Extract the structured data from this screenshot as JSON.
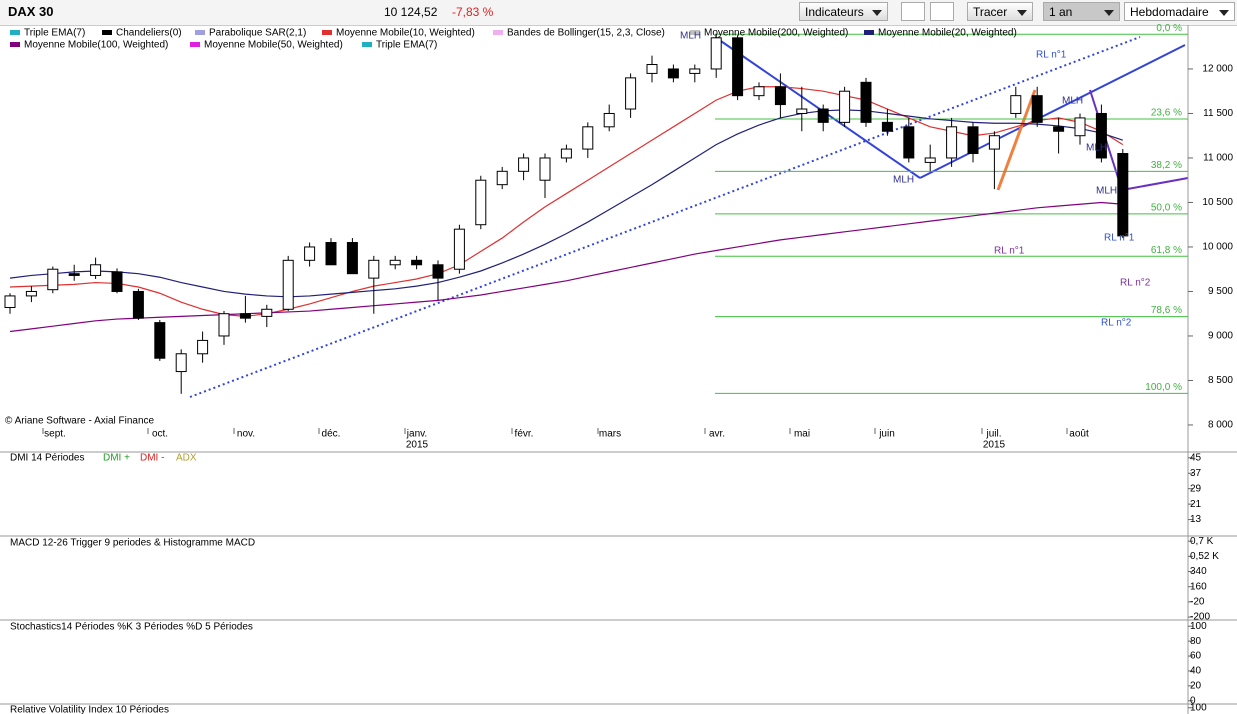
{
  "toolbar": {
    "symbol": "DAX 30",
    "price": "10 124,52",
    "change": "-7,83 %",
    "indicators_button": "Indicateurs",
    "draw_button": "Tracer",
    "period": "1 an",
    "interval": "Hebdomadaire"
  },
  "chart_data": {
    "type": "candlestick",
    "legend": [
      {
        "name": "Triple EMA(7)",
        "color": "#20b0c0"
      },
      {
        "name": "Chandeliers(0)",
        "color": "#000000"
      },
      {
        "name": "Parabolique SAR(2,1)",
        "color": "#a0a0e0"
      },
      {
        "name": "Moyenne Mobile(10, Weighted)",
        "color": "#e03030"
      },
      {
        "name": "Bandes de Bollinger(15, 2,3, Close)",
        "color": "#f0b0f0"
      },
      {
        "name": "Moyenne Mobile(200, Weighted)",
        "color": "#c0c0c0"
      },
      {
        "name": "Moyenne Mobile(20, Weighted)",
        "color": "#20207a"
      },
      {
        "name": "Moyenne Mobile(100, Weighted)",
        "color": "#800080"
      },
      {
        "name": "Moyenne Mobile(50, Weighted)",
        "color": "#e020e0"
      },
      {
        "name": "Triple EMA(7)",
        "color": "#20b0c0"
      }
    ],
    "open": [
      9320,
      9450,
      9520,
      9700,
      9680,
      9720,
      9500,
      9150,
      8600,
      8800,
      9000,
      9250,
      9220,
      9300,
      9850,
      10050,
      10050,
      9650,
      9800,
      9850,
      9800,
      9750,
      10250,
      10700,
      10850,
      10750,
      11000,
      11100,
      11350,
      11550,
      11950,
      12000,
      11950,
      12000,
      12350,
      11700,
      11800,
      11500,
      11550,
      11400,
      11850,
      11400,
      11350,
      10950,
      11000,
      11350,
      11100,
      11500,
      11700,
      11350,
      11250,
      11500,
      11050
    ],
    "high": [
      9480,
      9560,
      9780,
      9800,
      9880,
      9760,
      9530,
      9180,
      8850,
      9050,
      9280,
      9450,
      9350,
      9900,
      10050,
      10100,
      10100,
      9900,
      9900,
      9900,
      9850,
      10250,
      10800,
      10900,
      11050,
      11050,
      11150,
      11400,
      11600,
      11950,
      12150,
      12050,
      12050,
      12390,
      12380,
      11850,
      11950,
      11800,
      11600,
      11800,
      11900,
      11550,
      11450,
      11150,
      11450,
      11400,
      11300,
      11800,
      11800,
      11450,
      11500,
      11600,
      11100
    ],
    "low": [
      9250,
      9380,
      9480,
      9620,
      9640,
      9480,
      9180,
      8720,
      8350,
      8700,
      8900,
      9150,
      9100,
      9280,
      9780,
      9800,
      9700,
      9250,
      9750,
      9750,
      9400,
      9700,
      10200,
      10650,
      10750,
      10550,
      10950,
      11000,
      11300,
      11450,
      11850,
      11850,
      11850,
      11900,
      11650,
      11650,
      11450,
      11300,
      11300,
      11350,
      11350,
      11250,
      10950,
      10850,
      10900,
      10950,
      10650,
      11450,
      11350,
      11050,
      11150,
      10950,
      10100
    ],
    "close": [
      9450,
      9500,
      9750,
      9680,
      9800,
      9500,
      9200,
      8750,
      8800,
      8950,
      9250,
      9200,
      9300,
      9850,
      10000,
      9800,
      9700,
      9850,
      9850,
      9800,
      9650,
      10200,
      10750,
      10850,
      11000,
      11000,
      11100,
      11350,
      11500,
      11900,
      12050,
      11900,
      12000,
      12350,
      11700,
      11800,
      11600,
      11550,
      11400,
      11750,
      11400,
      11300,
      11000,
      11000,
      11350,
      11050,
      11250,
      11700,
      11400,
      11300,
      11450,
      11000,
      10124.52
    ],
    "series": [
      {
        "name": "Moyenne Mobile(10, Weighted)",
        "color": "#e03030",
        "values": [
          9550,
          9560,
          9570,
          9580,
          9600,
          9590,
          9550,
          9480,
          9380,
          9300,
          9240,
          9220,
          9250,
          9300,
          9360,
          9430,
          9500,
          9560,
          9600,
          9640,
          9700,
          9800,
          9950,
          10100,
          10280,
          10450,
          10600,
          10750,
          10900,
          11050,
          11200,
          11350,
          11500,
          11650,
          11750,
          11800,
          11800,
          11780,
          11750,
          11700,
          11650,
          11550,
          11450,
          11350,
          11300,
          11250,
          11280,
          11350,
          11420,
          11450,
          11400,
          11300,
          11150
        ]
      },
      {
        "name": "Moyenne Mobile(20, Weighted)",
        "color": "#20207a",
        "values": [
          9650,
          9680,
          9700,
          9720,
          9730,
          9720,
          9700,
          9660,
          9600,
          9550,
          9500,
          9470,
          9450,
          9440,
          9450,
          9470,
          9490,
          9510,
          9530,
          9560,
          9600,
          9660,
          9730,
          9820,
          9920,
          10030,
          10150,
          10280,
          10420,
          10560,
          10700,
          10850,
          11000,
          11150,
          11270,
          11370,
          11450,
          11500,
          11530,
          11540,
          11530,
          11500,
          11470,
          11440,
          11420,
          11400,
          11390,
          11390,
          11380,
          11360,
          11330,
          11280,
          11200
        ]
      },
      {
        "name": "Moyenne Mobile(100, Weighted)",
        "color": "#800080",
        "values": [
          9050,
          9080,
          9110,
          9140,
          9170,
          9190,
          9200,
          9210,
          9220,
          9230,
          9240,
          9250,
          9260,
          9270,
          9280,
          9300,
          9320,
          9340,
          9360,
          9380,
          9400,
          9430,
          9460,
          9500,
          9540,
          9580,
          9620,
          9670,
          9720,
          9770,
          9820,
          9870,
          9920,
          9960,
          10000,
          10040,
          10080,
          10110,
          10140,
          10170,
          10200,
          10230,
          10260,
          10290,
          10320,
          10350,
          10380,
          10410,
          10440,
          10460,
          10480,
          10500,
          10480
        ]
      }
    ],
    "fibonacci": [
      {
        "value": 12390,
        "label": "0,0 %"
      },
      {
        "value": 11438,
        "label": "23,6 %"
      },
      {
        "value": 10849,
        "label": "38,2 %"
      },
      {
        "value": 10372,
        "label": "50,0 %"
      },
      {
        "value": 9896,
        "label": "61,8 %"
      },
      {
        "value": 9218,
        "label": "78,6 %"
      },
      {
        "value": 8355,
        "label": "100,0 %"
      }
    ],
    "annotations": [
      "MLH",
      "MLH",
      "MLH",
      "MLH",
      "MLH",
      "RL n°1",
      "RL n°1",
      "RL n°1",
      "RL n°2",
      "RL n°2"
    ],
    "months": [
      "sept.",
      "oct.",
      "nov.",
      "déc.",
      "janv.",
      "févr.",
      "mars",
      "avr.",
      "mai",
      "juin",
      "juil.",
      "août"
    ],
    "years": [
      "2015",
      "2015"
    ],
    "copyright": "© Ariane Software - Axial Finance",
    "ylim": [
      7921,
      12494
    ],
    "yticks": [
      {
        "value": 8000,
        "label": "8 000"
      },
      {
        "value": 8500,
        "label": "8 500"
      },
      {
        "value": 9000,
        "label": "9 000"
      },
      {
        "value": 9500,
        "label": "9 500"
      },
      {
        "value": 10000,
        "label": "10 000"
      },
      {
        "value": 10500,
        "label": "10 500"
      },
      {
        "value": 11000,
        "label": "11 000"
      },
      {
        "value": 11500,
        "label": "11 500"
      },
      {
        "value": 12000,
        "label": "12 000"
      }
    ],
    "panels": [
      {
        "title": "DMI 14 Périodes",
        "legend": [
          {
            "name": "DMI +",
            "color": "#20a020"
          },
          {
            "name": "DMI -",
            "color": "#e02020"
          },
          {
            "name": "ADX",
            "color": "#b0a030"
          }
        ],
        "ylim": [
          5,
          48
        ],
        "yticks": [
          13,
          21,
          29,
          37,
          45
        ]
      },
      {
        "title": "MACD 12-26   Trigger 9 periodes & Histogramme MACD",
        "ylim": [
          -235,
          750
        ],
        "yticks": [
          {
            "value": 700,
            "label": "0,7 K"
          },
          {
            "value": 520,
            "label": "0,52 K"
          },
          340,
          160,
          -20,
          -200
        ]
      },
      {
        "title": "Stochastics14 Périodes   %K 3 Périodes   %D 5 Périodes",
        "ylim": [
          -3,
          107
        ],
        "yticks": [
          0,
          20,
          40,
          60,
          80,
          100
        ]
      },
      {
        "title": "Relative Volatility Index 10 Périodes",
        "ylim": [
          95,
          103
        ],
        "yticks": [
          100
        ]
      }
    ]
  }
}
